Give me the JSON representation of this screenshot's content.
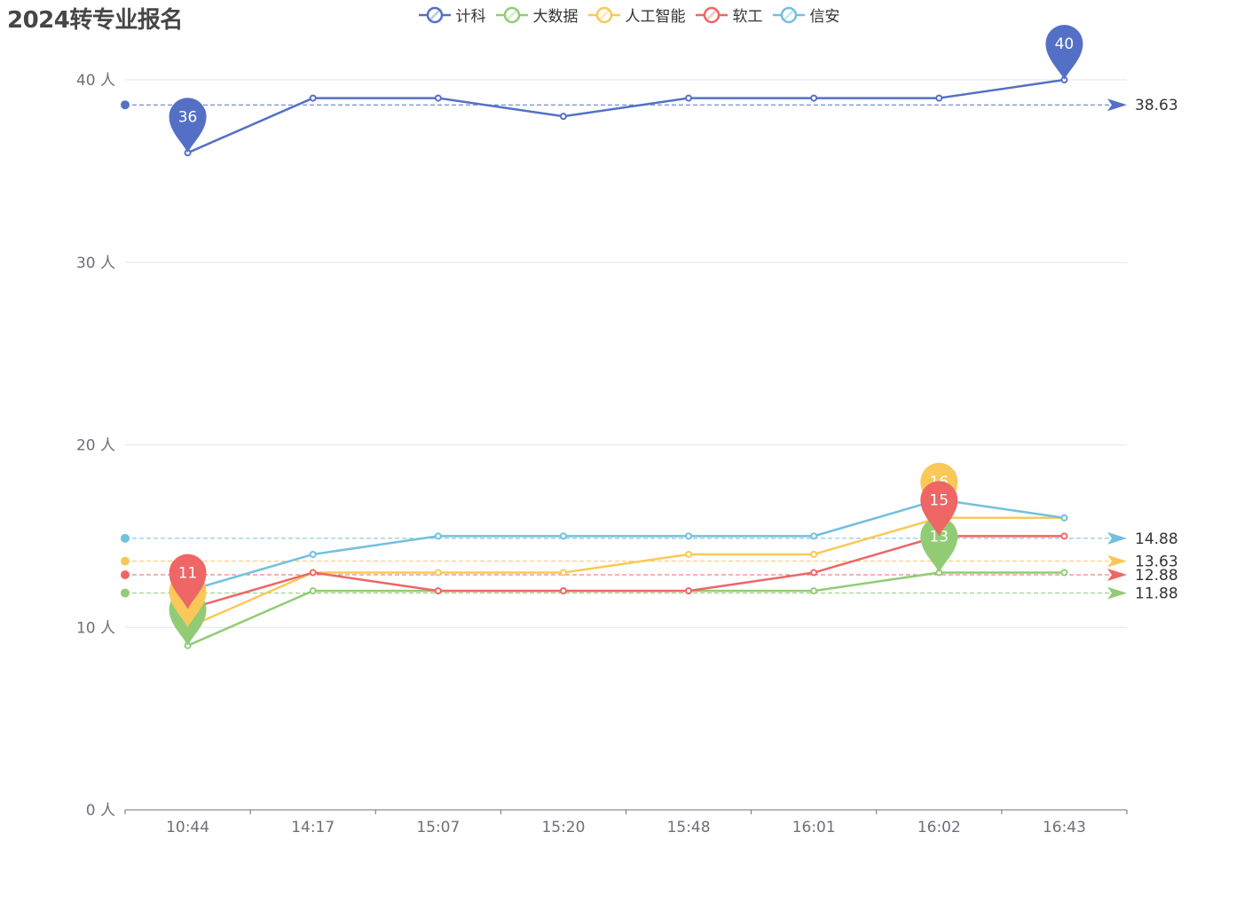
{
  "chart_data": {
    "type": "line",
    "title": "2024转专业报名",
    "categories": [
      "10:44",
      "14:17",
      "15:07",
      "15:20",
      "15:48",
      "16:01",
      "16:02",
      "16:43"
    ],
    "ylim": [
      0,
      40
    ],
    "yticks": [
      0,
      10,
      20,
      30,
      40
    ],
    "y_unit": "人",
    "grid": true,
    "legend_position": "top-center",
    "series": [
      {
        "name": "计科",
        "color": "#5470c6",
        "values": [
          36,
          39,
          39,
          38,
          39,
          39,
          39,
          40
        ],
        "max": {
          "index": 7,
          "label": "40"
        },
        "min": {
          "index": 0,
          "label": "36"
        },
        "average": "38.63"
      },
      {
        "name": "大数据",
        "color": "#91cc75",
        "values": [
          9,
          12,
          12,
          12,
          12,
          12,
          13,
          13
        ],
        "max": {
          "index": 6,
          "label": "13"
        },
        "min": {
          "index": 0,
          "label": "9"
        },
        "average": "11.88"
      },
      {
        "name": "人工智能",
        "color": "#fac858",
        "values": [
          10,
          13,
          13,
          13,
          14,
          14,
          16,
          16
        ],
        "max": {
          "index": 6,
          "label": "16"
        },
        "min": {
          "index": 0,
          "label": "10"
        },
        "average": "13.63"
      },
      {
        "name": "软工",
        "color": "#ee6666",
        "values": [
          11,
          13,
          12,
          12,
          12,
          13,
          15,
          15
        ],
        "max": {
          "index": 6,
          "label": "15"
        },
        "min": {
          "index": 0,
          "label": "11"
        },
        "average": "12.88"
      },
      {
        "name": "信安",
        "color": "#73c0de",
        "values": [
          12,
          14,
          15,
          15,
          15,
          15,
          17,
          16
        ],
        "max": null,
        "min": null,
        "average": "14.88"
      }
    ]
  }
}
